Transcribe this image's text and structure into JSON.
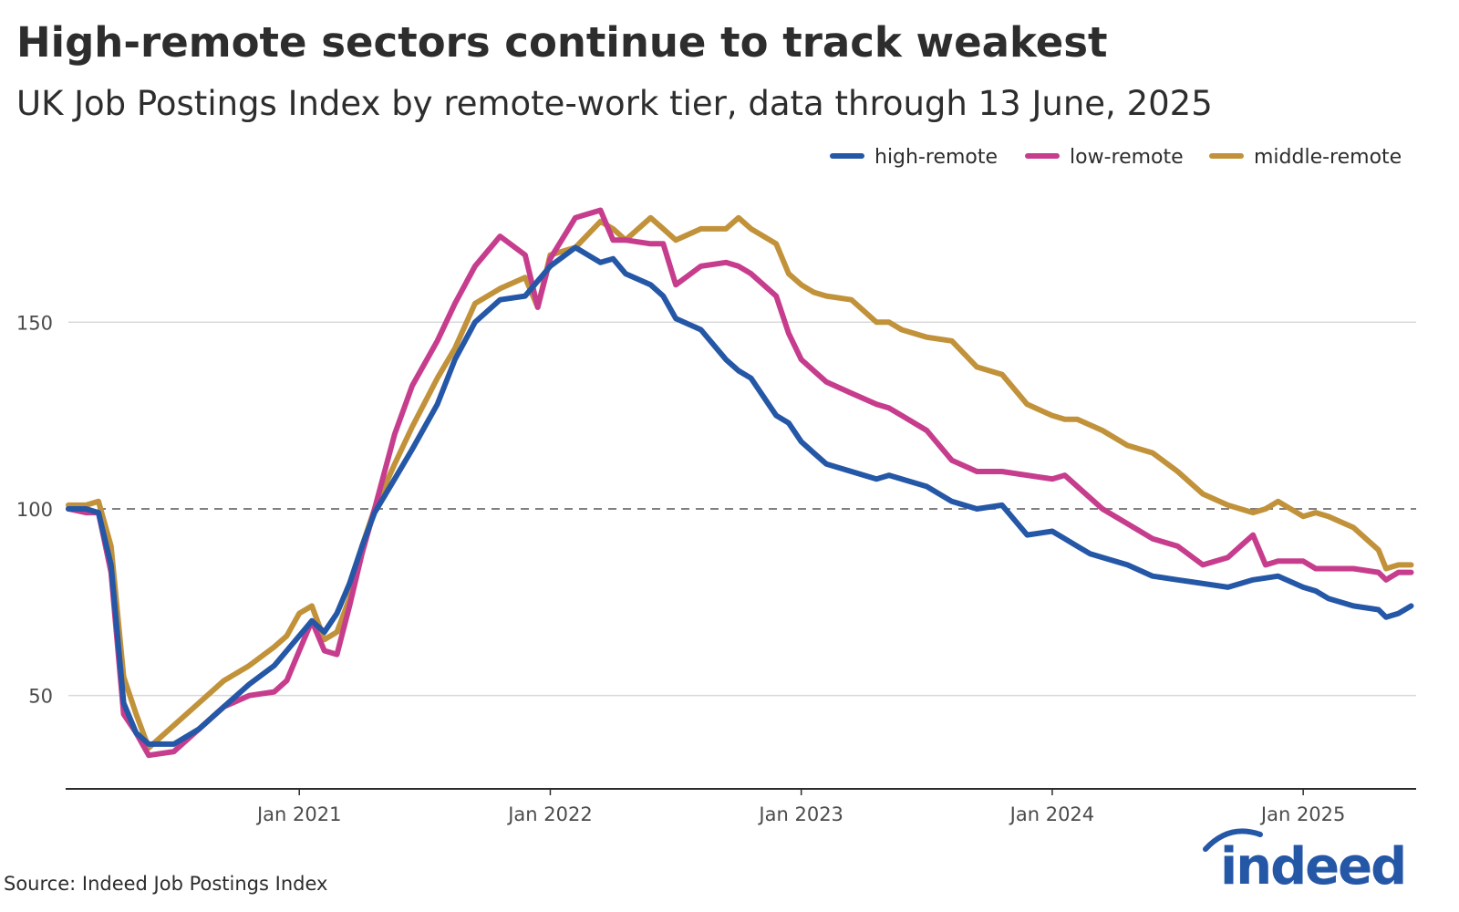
{
  "title": "High-remote sectors continue to track weakest",
  "subtitle": "UK Job Postings Index by remote-work tier, data through 13 June, 2025",
  "source": "Source: Indeed Job Postings Index",
  "logo_text": "indeed",
  "colors": {
    "high_remote": "#2557a7",
    "low_remote": "#c73d8d",
    "middle_remote": "#c1923a",
    "gridline": "#d9d9d9",
    "baseline": "#6f6f6f",
    "axis": "#2d2d2d",
    "logo": "#2557a7"
  },
  "chart_data": {
    "type": "line",
    "title": "High-remote sectors continue to track weakest",
    "subtitle": "UK Job Postings Index by remote-work tier, data through 13 June, 2025",
    "xlabel": "",
    "ylabel": "",
    "xlim": [
      2020.08,
      2025.45
    ],
    "ylim": [
      25,
      185
    ],
    "yticks": [
      50,
      100,
      150
    ],
    "ytick_labels": [
      "50",
      "100",
      "150"
    ],
    "xticks": [
      2021.0,
      2022.0,
      2023.0,
      2024.0,
      2025.0
    ],
    "xtick_labels": [
      "Jan 2021",
      "Jan 2022",
      "Jan 2023",
      "Jan 2024",
      "Jan 2025"
    ],
    "reference_line": 100,
    "legend_position": "top-right",
    "series": [
      {
        "name": "high-remote",
        "x": [
          2020.08,
          2020.15,
          2020.2,
          2020.25,
          2020.3,
          2020.35,
          2020.4,
          2020.5,
          2020.6,
          2020.7,
          2020.8,
          2020.9,
          2020.95,
          2021.05,
          2021.1,
          2021.15,
          2021.2,
          2021.25,
          2021.3,
          2021.38,
          2021.45,
          2021.55,
          2021.62,
          2021.7,
          2021.8,
          2021.9,
          2022.0,
          2022.1,
          2022.2,
          2022.25,
          2022.3,
          2022.4,
          2022.45,
          2022.5,
          2022.6,
          2022.7,
          2022.75,
          2022.8,
          2022.9,
          2022.95,
          2023.0,
          2023.05,
          2023.1,
          2023.2,
          2023.3,
          2023.35,
          2023.4,
          2023.5,
          2023.6,
          2023.7,
          2023.8,
          2023.9,
          2024.0,
          2024.05,
          2024.1,
          2024.15,
          2024.2,
          2024.3,
          2024.4,
          2024.5,
          2024.6,
          2024.7,
          2024.8,
          2024.9,
          2025.0,
          2025.05,
          2025.1,
          2025.2,
          2025.3,
          2025.33,
          2025.38,
          2025.43
        ],
        "values": [
          100,
          100,
          99,
          85,
          48,
          40,
          37,
          37,
          41,
          47,
          53,
          58,
          62,
          70,
          67,
          72,
          80,
          90,
          99,
          108,
          116,
          128,
          140,
          150,
          156,
          157,
          165,
          170,
          166,
          167,
          163,
          160,
          157,
          151,
          148,
          140,
          137,
          135,
          125,
          123,
          118,
          115,
          112,
          110,
          108,
          109,
          108,
          106,
          102,
          100,
          101,
          93,
          94,
          92,
          90,
          88,
          87,
          85,
          82,
          81,
          80,
          79,
          81,
          82,
          79,
          78,
          76,
          74,
          73,
          71,
          72,
          74
        ]
      },
      {
        "name": "low-remote",
        "x": [
          2020.08,
          2020.15,
          2020.2,
          2020.25,
          2020.3,
          2020.35,
          2020.4,
          2020.5,
          2020.6,
          2020.7,
          2020.8,
          2020.9,
          2020.95,
          2021.0,
          2021.05,
          2021.1,
          2021.15,
          2021.2,
          2021.25,
          2021.3,
          2021.38,
          2021.45,
          2021.55,
          2021.62,
          2021.7,
          2021.8,
          2021.9,
          2021.95,
          2022.0,
          2022.1,
          2022.2,
          2022.25,
          2022.3,
          2022.4,
          2022.45,
          2022.5,
          2022.6,
          2022.7,
          2022.75,
          2022.8,
          2022.9,
          2022.95,
          2023.0,
          2023.05,
          2023.1,
          2023.2,
          2023.3,
          2023.35,
          2023.4,
          2023.5,
          2023.6,
          2023.7,
          2023.8,
          2023.9,
          2024.0,
          2024.05,
          2024.1,
          2024.2,
          2024.3,
          2024.4,
          2024.5,
          2024.6,
          2024.7,
          2024.75,
          2024.8,
          2024.85,
          2024.9,
          2025.0,
          2025.05,
          2025.1,
          2025.2,
          2025.3,
          2025.33,
          2025.38,
          2025.43
        ],
        "values": [
          100,
          99,
          99,
          83,
          45,
          40,
          34,
          35,
          41,
          47,
          50,
          51,
          54,
          62,
          70,
          62,
          61,
          74,
          88,
          100,
          120,
          133,
          145,
          155,
          165,
          173,
          168,
          154,
          167,
          178,
          180,
          172,
          172,
          171,
          171,
          160,
          165,
          166,
          165,
          163,
          157,
          147,
          140,
          137,
          134,
          131,
          128,
          127,
          125,
          121,
          113,
          110,
          110,
          109,
          108,
          109,
          106,
          100,
          96,
          92,
          90,
          85,
          87,
          90,
          93,
          85,
          86,
          86,
          84,
          84,
          84,
          83,
          81,
          83,
          83
        ]
      },
      {
        "name": "middle-remote",
        "x": [
          2020.08,
          2020.15,
          2020.2,
          2020.25,
          2020.3,
          2020.35,
          2020.4,
          2020.5,
          2020.6,
          2020.7,
          2020.8,
          2020.9,
          2020.95,
          2021.0,
          2021.05,
          2021.1,
          2021.15,
          2021.2,
          2021.25,
          2021.3,
          2021.38,
          2021.45,
          2021.55,
          2021.62,
          2021.7,
          2021.8,
          2021.9,
          2021.95,
          2022.0,
          2022.1,
          2022.2,
          2022.25,
          2022.3,
          2022.4,
          2022.45,
          2022.5,
          2022.6,
          2022.7,
          2022.75,
          2022.8,
          2022.9,
          2022.95,
          2023.0,
          2023.05,
          2023.1,
          2023.2,
          2023.3,
          2023.35,
          2023.4,
          2023.5,
          2023.6,
          2023.7,
          2023.8,
          2023.9,
          2024.0,
          2024.05,
          2024.1,
          2024.2,
          2024.3,
          2024.4,
          2024.5,
          2024.6,
          2024.7,
          2024.75,
          2024.8,
          2024.85,
          2024.9,
          2025.0,
          2025.05,
          2025.1,
          2025.2,
          2025.3,
          2025.33,
          2025.38,
          2025.43
        ],
        "values": [
          101,
          101,
          102,
          90,
          55,
          45,
          36,
          42,
          48,
          54,
          58,
          63,
          66,
          72,
          74,
          65,
          67,
          76,
          90,
          100,
          112,
          122,
          135,
          143,
          155,
          159,
          162,
          154,
          168,
          170,
          177,
          175,
          172,
          178,
          175,
          172,
          175,
          175,
          178,
          175,
          171,
          163,
          160,
          158,
          157,
          156,
          150,
          150,
          148,
          146,
          145,
          138,
          136,
          128,
          125,
          124,
          124,
          121,
          117,
          115,
          110,
          104,
          101,
          100,
          99,
          100,
          102,
          98,
          99,
          98,
          95,
          89,
          84,
          85,
          85
        ]
      }
    ]
  }
}
